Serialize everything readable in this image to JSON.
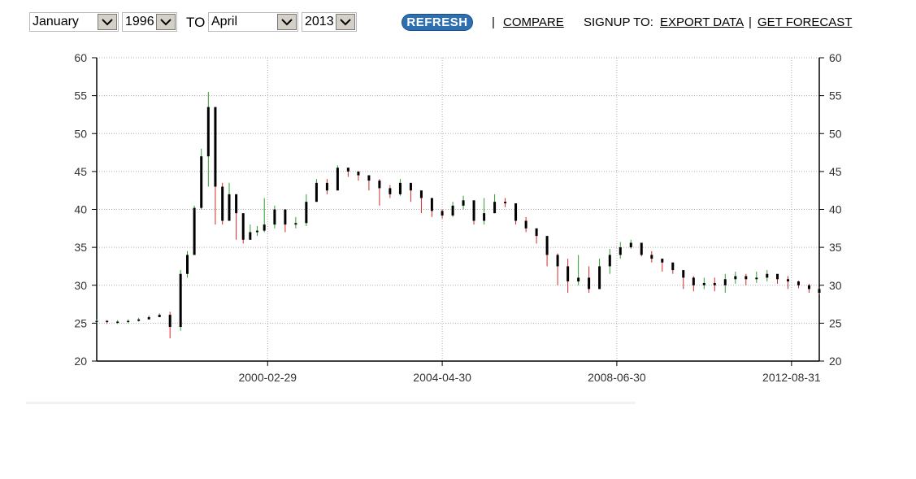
{
  "controls": {
    "from_month": "January",
    "from_year": "1996",
    "to_label": "TO",
    "to_month": "April",
    "to_year": "2013",
    "refresh_label": "REFRESH",
    "separator": "|",
    "compare_label": "COMPARE",
    "signup_label": "SIGNUP TO:",
    "export_label": "EXPORT DATA",
    "forecast_label": "GET FORECAST"
  },
  "colors": {
    "up": "#2ca02c",
    "down": "#d62728",
    "body": "#000000",
    "grid": "#b0b0b0",
    "refresh_button": "#2e6fb0"
  },
  "chart_data": {
    "type": "candlestick",
    "title": "",
    "xlabel": "",
    "ylabel": "",
    "ylim": [
      20,
      60
    ],
    "yticks": [
      20,
      25,
      30,
      35,
      40,
      45,
      50,
      55,
      60
    ],
    "y_axis_both_sides": true,
    "x_range": [
      "1996-01-31",
      "2013-04-30"
    ],
    "xticks": [
      "2000-02-29",
      "2004-04-30",
      "2008-06-30",
      "2012-08-31"
    ],
    "grid": true,
    "legend": "none",
    "series": [
      {
        "dates": [
          "1996-01-31",
          "1996-04-30",
          "1996-07-31",
          "1996-10-31",
          "1997-01-31",
          "1997-04-30",
          "1997-07-31",
          "1997-10-31",
          "1998-01-31",
          "1998-03-31",
          "1998-05-31",
          "1998-07-31",
          "1998-09-30",
          "1998-11-30",
          "1999-01-31",
          "1999-03-31",
          "1999-05-31",
          "1999-07-31",
          "1999-09-30",
          "1999-11-30",
          "2000-01-31",
          "2000-04-30",
          "2000-07-31",
          "2000-10-31",
          "2001-01-31",
          "2001-04-30",
          "2001-07-31",
          "2001-10-31",
          "2002-01-31",
          "2002-04-30",
          "2002-07-31",
          "2002-10-31",
          "2003-01-31",
          "2003-04-30",
          "2003-07-31",
          "2003-10-31",
          "2004-01-31",
          "2004-04-30",
          "2004-07-31",
          "2004-10-31",
          "2005-01-31",
          "2005-04-30",
          "2005-07-31",
          "2005-10-31",
          "2006-01-31",
          "2006-04-30",
          "2006-07-31",
          "2006-10-31",
          "2007-01-31",
          "2007-04-30",
          "2007-07-31",
          "2007-10-31",
          "2008-01-31",
          "2008-04-30",
          "2008-07-31",
          "2008-10-31",
          "2009-01-31",
          "2009-04-30",
          "2009-07-31",
          "2009-10-31",
          "2010-01-31",
          "2010-04-30",
          "2010-07-31",
          "2010-10-31",
          "2011-01-31",
          "2011-04-30",
          "2011-07-31",
          "2011-10-31",
          "2012-01-31",
          "2012-04-30",
          "2012-07-31",
          "2012-10-31",
          "2013-01-31",
          "2013-04-30"
        ],
        "close": [
          25.3,
          25.2,
          25.2,
          25.3,
          25.5,
          25.8,
          26.1,
          24.5,
          31.5,
          34.0,
          40.2,
          47.0,
          53.5,
          43.0,
          38.5,
          42.0,
          39.5,
          36.0,
          37.0,
          37.2,
          38.0,
          40.0,
          38.0,
          38.2,
          41.0,
          43.5,
          42.5,
          45.5,
          45.0,
          44.5,
          43.8,
          42.8,
          42.0,
          43.5,
          42.5,
          41.5,
          39.8,
          39.2,
          40.5,
          41.2,
          38.5,
          39.5,
          41.0,
          40.8,
          38.5,
          37.5,
          36.5,
          34.0,
          32.5,
          30.5,
          31.0,
          29.5,
          32.5,
          34.0,
          35.0,
          35.6,
          34.0,
          33.5,
          33.0,
          32.0,
          31.0,
          30.0,
          30.3,
          30.0,
          30.8,
          31.2,
          30.8,
          31.0,
          31.5,
          30.8,
          30.5,
          30.0,
          29.5,
          29.0
        ],
        "high": [
          25.5,
          25.4,
          25.4,
          25.5,
          25.7,
          26.0,
          26.3,
          26.5,
          32.0,
          34.5,
          40.5,
          48.0,
          55.5,
          51.5,
          43.5,
          43.5,
          42.0,
          38.0,
          38.0,
          37.8,
          41.5,
          40.5,
          39.0,
          39.0,
          42.0,
          44.0,
          44.0,
          45.8,
          45.5,
          45.0,
          44.5,
          44.0,
          43.2,
          44.0,
          43.3,
          42.0,
          40.5,
          40.0,
          41.0,
          41.8,
          40.5,
          41.5,
          42.0,
          41.5,
          40.0,
          39.0,
          37.5,
          35.0,
          34.2,
          33.5,
          34.0,
          32.5,
          33.5,
          34.8,
          35.7,
          36.0,
          35.2,
          34.5,
          33.5,
          33.0,
          31.5,
          31.2,
          31.0,
          31.0,
          31.5,
          31.8,
          31.5,
          31.8,
          32.0,
          31.3,
          31.2,
          30.6,
          30.2,
          29.5
        ],
        "low": [
          25.0,
          24.9,
          24.9,
          25.0,
          25.2,
          25.5,
          25.8,
          23.0,
          24.0,
          31.0,
          34.0,
          40.0,
          43.0,
          38.0,
          38.0,
          38.5,
          36.0,
          35.5,
          36.0,
          36.5,
          37.0,
          37.5,
          37.0,
          37.5,
          37.8,
          41.0,
          42.0,
          42.5,
          44.3,
          43.8,
          42.5,
          40.5,
          41.5,
          41.8,
          41.0,
          39.5,
          39.0,
          38.8,
          39.0,
          40.0,
          38.0,
          38.0,
          39.5,
          40.3,
          38.0,
          37.0,
          35.5,
          32.5,
          30.0,
          29.0,
          30.0,
          29.0,
          29.5,
          31.5,
          33.5,
          34.8,
          33.8,
          33.0,
          31.8,
          31.5,
          29.5,
          29.2,
          29.5,
          29.2,
          29.0,
          30.2,
          30.0,
          30.3,
          30.5,
          30.2,
          29.5,
          29.6,
          29.0,
          28.8
        ]
      }
    ]
  }
}
